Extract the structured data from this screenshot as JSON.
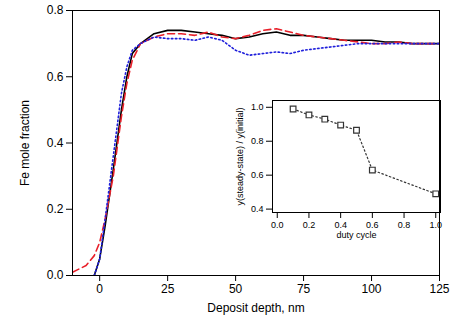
{
  "chart_data": [
    {
      "type": "line",
      "x_label": "Deposit depth, nm",
      "y_label": "Fe mole fraction",
      "x": [
        -10,
        -5,
        -2,
        0,
        2,
        5,
        8,
        10,
        12,
        15,
        20,
        25,
        30,
        35,
        40,
        45,
        50,
        55,
        60,
        65,
        70,
        75,
        80,
        85,
        90,
        95,
        100,
        105,
        110,
        115,
        120,
        125
      ],
      "series": [
        {
          "color": "#000000",
          "line_style": "solid",
          "values": [
            null,
            null,
            0.0,
            0.05,
            0.15,
            0.32,
            0.5,
            0.6,
            0.67,
            0.7,
            0.73,
            0.74,
            0.74,
            0.735,
            0.73,
            0.725,
            0.715,
            0.72,
            0.73,
            0.735,
            0.725,
            0.725,
            0.72,
            0.715,
            0.71,
            0.71,
            0.71,
            0.705,
            0.705,
            0.7,
            0.7,
            0.7
          ]
        },
        {
          "color": "#e8202a",
          "line_style": "dashed",
          "values": [
            0.01,
            0.03,
            0.06,
            0.1,
            0.17,
            0.3,
            0.48,
            0.58,
            0.65,
            0.7,
            0.72,
            0.73,
            0.73,
            0.725,
            0.735,
            0.72,
            0.715,
            0.725,
            0.74,
            0.745,
            0.735,
            0.725,
            0.72,
            0.715,
            0.71,
            0.705,
            0.7,
            0.7,
            0.705,
            0.7,
            0.7,
            0.7
          ]
        },
        {
          "color": "#1f1fdb",
          "line_style": "dotted",
          "values": [
            null,
            null,
            0.0,
            0.05,
            0.17,
            0.36,
            0.55,
            0.63,
            0.68,
            0.7,
            0.72,
            0.715,
            0.715,
            0.71,
            0.72,
            0.71,
            0.68,
            0.665,
            0.67,
            0.675,
            0.67,
            0.68,
            0.685,
            0.69,
            0.695,
            0.7,
            0.7,
            0.7,
            0.7,
            0.7,
            0.7,
            0.7
          ]
        }
      ],
      "xlim": [
        -10,
        125
      ],
      "ylim": [
        0,
        0.8
      ],
      "xticks": [
        0,
        25,
        50,
        75,
        100,
        125
      ],
      "yticks": [
        {
          "value": 0,
          "label": "0.0"
        },
        0.2,
        0.4,
        0.6,
        0.8
      ]
    },
    {
      "type": "scatter",
      "x_label": "duty cycle",
      "y_label": "y(steady-state) / y(initial)",
      "x": [
        0.1,
        0.2,
        0.3,
        0.4,
        0.5,
        0.6,
        1.0
      ],
      "values": [
        0.99,
        0.955,
        0.93,
        0.895,
        0.865,
        0.63,
        0.49
      ],
      "color": "#333333",
      "marker": "square",
      "line_style": "dotted",
      "xlim": [
        -0.03,
        1.03
      ],
      "ylim": [
        0.38,
        1.04
      ],
      "xticks": [
        {
          "value": 0,
          "label": "0.0"
        },
        0.2,
        0.4,
        0.6,
        0.8,
        {
          "value": 1,
          "label": "1.0"
        }
      ],
      "yticks": [
        0.4,
        0.6,
        0.8,
        {
          "value": 1,
          "label": "1.0"
        }
      ]
    }
  ]
}
